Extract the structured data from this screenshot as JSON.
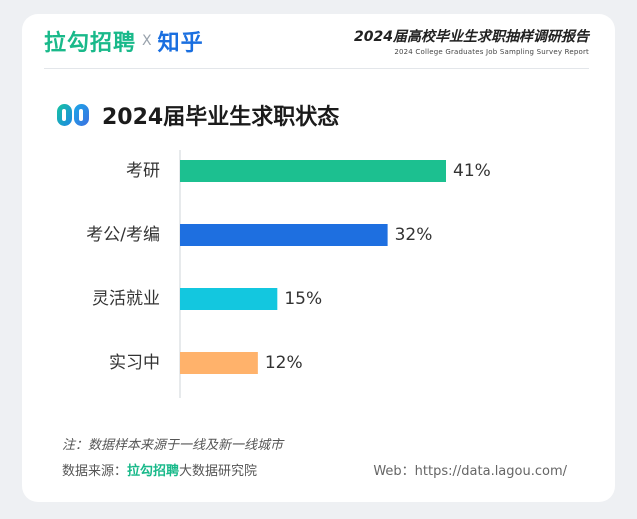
{
  "header": {
    "brand_lagou": "拉勾招聘",
    "brand_x": "X",
    "brand_zhihu": "知乎",
    "report_title": "2024届高校毕业生求职抽样调研报告",
    "report_subtitle": "2024 College Graduates Job Sampling Survey Report"
  },
  "section": {
    "title": "2024届毕业生求职状态"
  },
  "chart_data": {
    "type": "bar",
    "orientation": "horizontal",
    "title": "2024届毕业生求职状态",
    "categories": [
      "考研",
      "考公/考编",
      "灵活就业",
      "实习中"
    ],
    "values": [
      41,
      32,
      15,
      12
    ],
    "value_labels": [
      "41%",
      "32%",
      "15%",
      "12%"
    ],
    "colors": [
      "#1cc090",
      "#1e6fe0",
      "#13c7df",
      "#ffb26b"
    ],
    "unit": "%",
    "xlim": [
      0,
      41
    ],
    "grid": false,
    "legend": "none"
  },
  "footer": {
    "note": "注：数据样本来源于一线及新一线城市",
    "source_prefix": "数据来源：",
    "source_brand": "拉勾招聘",
    "source_suffix": "大数据研究院",
    "web": "Web：https://data.lagou.com/"
  },
  "colors": {
    "lagou_green": "#19b98a",
    "zhihu_blue": "#1a6fe0",
    "background": "#eef0f3"
  },
  "icons": {
    "title_icon": "split-circle-icon"
  }
}
